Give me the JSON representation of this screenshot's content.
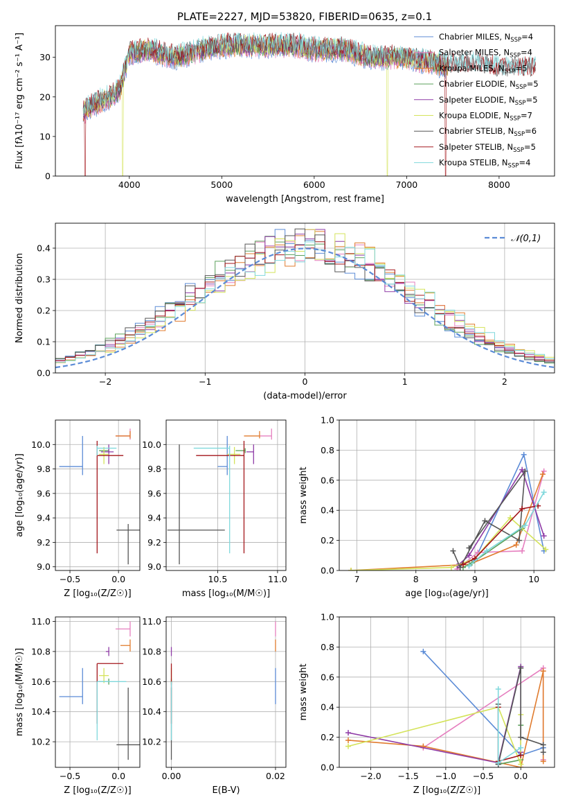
{
  "figure": {
    "title": "PLATE=2227, MJD=53820, FIBERID=0635, z=0.1"
  },
  "models": [
    {
      "name": "Chabrier MILES",
      "nssp": 4,
      "color": "#5b8bd6"
    },
    {
      "name": "Salpeter MILES",
      "nssp": 4,
      "color": "#e67fbf"
    },
    {
      "name": "Kroupa MILES",
      "nssp": 5,
      "color": "#e07b2e"
    },
    {
      "name": "Chabrier ELODIE",
      "nssp": 5,
      "color": "#5aa05a"
    },
    {
      "name": "Salpeter ELODIE",
      "nssp": 5,
      "color": "#8e3aa6"
    },
    {
      "name": "Kroupa ELODIE",
      "nssp": 7,
      "color": "#d4e35a"
    },
    {
      "name": "Chabrier STELIB",
      "nssp": 6,
      "color": "#555555"
    },
    {
      "name": "Salpeter STELIB",
      "nssp": 5,
      "color": "#a3151a"
    },
    {
      "name": "Kroupa STELIB",
      "nssp": 4,
      "color": "#7fd8dc"
    }
  ],
  "chart_data": [
    {
      "id": "spectrum",
      "type": "line",
      "title": "PLATE=2227, MJD=53820, FIBERID=0635, z=0.1",
      "xlabel": "wavelength [Angstrom, rest frame]",
      "ylabel": "Flux [fλ10⁻¹⁷ erg cm⁻² s⁻¹ A⁻¹]",
      "xlim": [
        3200,
        8600
      ],
      "ylim": [
        0,
        38
      ],
      "xticks": [
        4000,
        5000,
        6000,
        7000,
        8000
      ],
      "yticks": [
        0,
        10,
        20,
        30
      ],
      "grid": false,
      "legend": "top-right",
      "continuum": {
        "x": [
          3500,
          3600,
          3700,
          3800,
          3900,
          4000,
          4200,
          4500,
          4800,
          5000,
          5200,
          5500,
          5800,
          6000,
          6300,
          6600,
          6800,
          7000,
          7200,
          7400,
          7600,
          7800,
          8000,
          8200,
          8400
        ],
        "y": [
          16,
          18,
          19,
          20,
          22,
          31,
          32,
          30,
          32,
          33,
          33,
          33,
          33,
          32,
          32,
          30,
          30,
          30,
          29,
          28,
          28,
          28,
          27,
          27,
          27
        ]
      },
      "dips": [
        {
          "x": 3520,
          "y": 0,
          "series": "Salpeter STELIB"
        },
        {
          "x": 3930,
          "y": 0,
          "series": "Kroupa ELODIE"
        },
        {
          "x": 6790,
          "y": 0,
          "series": "Kroupa ELODIE"
        },
        {
          "x": 7420,
          "y": 0,
          "series": "Salpeter STELIB"
        }
      ]
    },
    {
      "id": "residuals",
      "type": "histogram",
      "xlabel": "(data-model)/error",
      "ylabel": "Normed distribution",
      "xlim": [
        -2.5,
        2.5
      ],
      "ylim": [
        0,
        0.48
      ],
      "xticks": [
        -2,
        -1,
        0,
        1,
        2
      ],
      "yticks": [
        0.0,
        0.1,
        0.2,
        0.3,
        0.4
      ],
      "grid": true,
      "legend": "top-right",
      "reference": {
        "label": "𝒩(0,1)",
        "mean": 0,
        "sigma": 1,
        "style": "dashed"
      },
      "bin_width": 0.1,
      "peaks": [
        0.46,
        0.42,
        0.44,
        0.41,
        0.46,
        0.43,
        0.44,
        0.41,
        0.42
      ]
    },
    {
      "id": "age_vs_Z",
      "type": "errorbar",
      "xlabel": "Z [log₁₀(Z/Z☉)]",
      "ylabel": "age  [log₁₀(age/yr)]",
      "xlim": [
        -0.65,
        0.22
      ],
      "ylim": [
        8.97,
        10.2
      ],
      "xticks": [
        -0.5,
        0.0
      ],
      "yticks": [
        9.0,
        9.2,
        9.4,
        9.6,
        9.8,
        10.0
      ],
      "grid": true,
      "points": [
        {
          "series": "Chabrier MILES",
          "x": -0.37,
          "xerr": [
            0.24,
            0.0
          ],
          "y": 9.82,
          "yerr": [
            0.07,
            0.25
          ]
        },
        {
          "series": "Salpeter MILES",
          "x": 0.12,
          "xerr": [
            0.15,
            0.0
          ],
          "y": 10.07,
          "yerr": [
            0.03,
            0.06
          ]
        },
        {
          "series": "Kroupa MILES",
          "x": 0.12,
          "xerr": [
            0.15,
            0.0
          ],
          "y": 10.07,
          "yerr": [
            0.02,
            0.04
          ]
        },
        {
          "series": "Chabrier ELODIE",
          "x": -0.1,
          "xerr": [
            0.1,
            0.0
          ],
          "y": 9.95,
          "yerr": [
            0.02,
            0.02
          ]
        },
        {
          "series": "Salpeter ELODIE",
          "x": -0.1,
          "xerr": [
            0.08,
            0.05
          ],
          "y": 9.94,
          "yerr": [
            0.1,
            0.06
          ]
        },
        {
          "series": "Kroupa ELODIE",
          "x": -0.15,
          "xerr": [
            0.05,
            0.05
          ],
          "y": 9.92,
          "yerr": [
            0.08,
            0.06
          ]
        },
        {
          "series": "Chabrier STELIB",
          "x": 0.1,
          "xerr": [
            0.12,
            0.15
          ],
          "y": 9.3,
          "yerr": [
            0.28,
            0.05
          ]
        },
        {
          "series": "Salpeter STELIB",
          "x": -0.22,
          "xerr": [
            0.0,
            0.27
          ],
          "y": 9.91,
          "yerr": [
            0.8,
            0.12
          ]
        },
        {
          "series": "Kroupa STELIB",
          "x": -0.22,
          "xerr": [
            0.0,
            0.2
          ],
          "y": 9.97,
          "yerr": [
            0.06,
            0.02
          ]
        }
      ]
    },
    {
      "id": "age_vs_mass",
      "type": "errorbar",
      "xlabel": "mass [log₁₀(M/M☉)]",
      "ylabel": "",
      "xlim": [
        10.07,
        11.07
      ],
      "ylim": [
        8.97,
        10.2
      ],
      "xticks": [
        10.5,
        11.0
      ],
      "yticks": [
        9.0,
        9.2,
        9.4,
        9.6,
        9.8,
        10.0
      ],
      "grid": true,
      "points": [
        {
          "series": "Chabrier MILES",
          "x": 10.58,
          "xerr": [
            0.08,
            0.0
          ],
          "y": 9.82,
          "yerr": [
            0.07,
            0.25
          ]
        },
        {
          "series": "Salpeter MILES",
          "x": 10.95,
          "xerr": [
            0.1,
            0.0
          ],
          "y": 10.07,
          "yerr": [
            0.03,
            0.06
          ]
        },
        {
          "series": "Kroupa MILES",
          "x": 10.85,
          "xerr": [
            0.13,
            0.0
          ],
          "y": 10.07,
          "yerr": [
            0.02,
            0.04
          ]
        },
        {
          "series": "Chabrier ELODIE",
          "x": 10.73,
          "xerr": [
            0.08,
            0.0
          ],
          "y": 9.95,
          "yerr": [
            0.02,
            0.02
          ]
        },
        {
          "series": "Salpeter ELODIE",
          "x": 10.8,
          "xerr": [
            0.06,
            0.0
          ],
          "y": 9.94,
          "yerr": [
            0.1,
            0.06
          ]
        },
        {
          "series": "Kroupa ELODIE",
          "x": 10.64,
          "xerr": [
            0.06,
            0.05
          ],
          "y": 9.92,
          "yerr": [
            0.08,
            0.06
          ]
        },
        {
          "series": "Chabrier STELIB",
          "x": 10.18,
          "xerr": [
            0.1,
            0.38
          ],
          "y": 9.3,
          "yerr": [
            0.28,
            0.7
          ]
        },
        {
          "series": "Salpeter STELIB",
          "x": 10.72,
          "xerr": [
            0.4,
            0.0
          ],
          "y": 9.91,
          "yerr": [
            0.8,
            0.12
          ]
        },
        {
          "series": "Kroupa STELIB",
          "x": 10.6,
          "xerr": [
            0.3,
            0.0
          ],
          "y": 9.97,
          "yerr": [
            0.86,
            0.02
          ]
        }
      ]
    },
    {
      "id": "weight_vs_age",
      "type": "line",
      "xlabel": "age  [log₁₀(age/yr)]",
      "ylabel": "mass weight",
      "xlim": [
        6.7,
        10.35
      ],
      "ylim": [
        0,
        1
      ],
      "xticks": [
        7,
        8,
        9,
        10
      ],
      "yticks": [
        0.0,
        0.2,
        0.4,
        0.6,
        0.8,
        1.0
      ],
      "grid": true,
      "series": [
        {
          "name": "Chabrier MILES",
          "x": [
            8.9,
            9.0,
            9.83,
            10.17
          ],
          "y": [
            0.03,
            0.07,
            0.77,
            0.13
          ]
        },
        {
          "name": "Salpeter MILES",
          "x": [
            8.7,
            9.05,
            9.8,
            10.17
          ],
          "y": [
            0.01,
            0.12,
            0.13,
            0.66
          ]
        },
        {
          "name": "Kroupa MILES",
          "x": [
            6.9,
            8.9,
            9.7,
            10.15
          ],
          "y": [
            0.0,
            0.04,
            0.17,
            0.64
          ]
        },
        {
          "name": "Chabrier ELODIE",
          "x": [
            8.8,
            8.95,
            9.8
          ],
          "y": [
            0.02,
            0.05,
            0.28
          ]
        },
        {
          "name": "Salpeter ELODIE",
          "x": [
            8.7,
            8.9,
            9.8,
            10.17
          ],
          "y": [
            0.03,
            0.1,
            0.67,
            0.23
          ]
        },
        {
          "name": "Kroupa ELODIE",
          "x": [
            6.9,
            8.6,
            9.0,
            9.6,
            10.2
          ],
          "y": [
            0.0,
            0.02,
            0.08,
            0.35,
            0.14
          ]
        },
        {
          "name": "Chabrier STELIB",
          "x": [
            8.63,
            8.75,
            9.17,
            9.75,
            9.85,
            8.9
          ],
          "y": [
            0.13,
            0.02,
            0.33,
            0.2,
            0.66,
            0.15
          ]
        },
        {
          "name": "Salpeter STELIB",
          "x": [
            8.8,
            9.0,
            9.8,
            10.07
          ],
          "y": [
            0.04,
            0.08,
            0.41,
            0.43
          ]
        },
        {
          "name": "Kroupa STELIB",
          "x": [
            8.9,
            9.2,
            9.85,
            10.17
          ],
          "y": [
            0.03,
            0.13,
            0.3,
            0.52
          ]
        }
      ]
    },
    {
      "id": "mass_vs_Z",
      "type": "errorbar",
      "xlabel": "Z [log₁₀(Z/Z☉)]",
      "ylabel": "mass [log₁₀(M/M☉)]",
      "xlim": [
        -0.65,
        0.22
      ],
      "ylim": [
        10.03,
        11.03
      ],
      "xticks": [
        -0.5,
        0.0
      ],
      "yticks": [
        10.2,
        10.4,
        10.6,
        10.8,
        11.0
      ],
      "grid": true,
      "points": [
        {
          "series": "Chabrier MILES",
          "x": -0.37,
          "xerr": [
            0.24,
            0.0
          ],
          "y": 10.5,
          "yerr": [
            0.05,
            0.19
          ]
        },
        {
          "series": "Salpeter MILES",
          "x": 0.12,
          "xerr": [
            0.15,
            0.0
          ],
          "y": 10.95,
          "yerr": [
            0.05,
            0.05
          ]
        },
        {
          "series": "Kroupa MILES",
          "x": 0.12,
          "xerr": [
            0.1,
            0.0
          ],
          "y": 10.84,
          "yerr": [
            0.04,
            0.04
          ]
        },
        {
          "series": "Chabrier ELODIE",
          "x": -0.1,
          "xerr": [
            0.1,
            0.0
          ],
          "y": 10.6,
          "yerr": [
            0.02,
            0.02
          ]
        },
        {
          "series": "Salpeter ELODIE",
          "x": -0.1,
          "xerr": [
            0.03,
            0.0
          ],
          "y": 10.8,
          "yerr": [
            0.03,
            0.03
          ]
        },
        {
          "series": "Kroupa ELODIE",
          "x": -0.15,
          "xerr": [
            0.05,
            0.05
          ],
          "y": 10.64,
          "yerr": [
            0.05,
            0.05
          ]
        },
        {
          "series": "Chabrier STELIB",
          "x": 0.1,
          "xerr": [
            0.12,
            0.15
          ],
          "y": 10.18,
          "yerr": [
            0.1,
            0.38
          ]
        },
        {
          "series": "Salpeter STELIB",
          "x": -0.22,
          "xerr": [
            0.0,
            0.27
          ],
          "y": 10.72,
          "yerr": [
            0.4,
            0.0
          ]
        },
        {
          "series": "Kroupa STELIB",
          "x": -0.22,
          "xerr": [
            0.0,
            0.3
          ],
          "y": 10.6,
          "yerr": [
            0.39,
            0.0
          ]
        }
      ]
    },
    {
      "id": "mass_vs_ebv",
      "type": "errorbar",
      "xlabel": "E(B-V)",
      "ylabel": "",
      "xlim": [
        -0.001,
        0.022
      ],
      "ylim": [
        10.03,
        11.03
      ],
      "xticks": [
        0.0,
        0.02
      ],
      "yticks": [
        10.2,
        10.4,
        10.6,
        10.8,
        11.0
      ],
      "grid": true,
      "points": [
        {
          "series": "Chabrier MILES",
          "x": 0.02,
          "xerr": [
            0,
            0
          ],
          "y": 10.5,
          "yerr": [
            0.05,
            0.19
          ]
        },
        {
          "series": "Salpeter MILES",
          "x": 0.02,
          "xerr": [
            0,
            0
          ],
          "y": 10.95,
          "yerr": [
            0.05,
            0.05
          ]
        },
        {
          "series": "Kroupa MILES",
          "x": 0.02,
          "xerr": [
            0,
            0
          ],
          "y": 10.84,
          "yerr": [
            0.04,
            0.04
          ]
        },
        {
          "series": "Chabrier ELODIE",
          "x": 0.0,
          "xerr": [
            0,
            0
          ],
          "y": 10.6,
          "yerr": [
            0.02,
            0.02
          ]
        },
        {
          "series": "Salpeter ELODIE",
          "x": 0.0,
          "xerr": [
            0,
            0
          ],
          "y": 10.8,
          "yerr": [
            0.03,
            0.03
          ]
        },
        {
          "series": "Kroupa ELODIE",
          "x": 0.0,
          "xerr": [
            0,
            0
          ],
          "y": 10.64,
          "yerr": [
            0.05,
            0.05
          ]
        },
        {
          "series": "Chabrier STELIB",
          "x": 0.0,
          "xerr": [
            0,
            0
          ],
          "y": 10.18,
          "yerr": [
            0.1,
            0.38
          ]
        },
        {
          "series": "Salpeter STELIB",
          "x": 0.0,
          "xerr": [
            0,
            0
          ],
          "y": 10.72,
          "yerr": [
            0.4,
            0.0
          ]
        },
        {
          "series": "Kroupa STELIB",
          "x": 0.0,
          "xerr": [
            0,
            0
          ],
          "y": 10.6,
          "yerr": [
            0.39,
            0.0
          ]
        }
      ]
    },
    {
      "id": "weight_vs_Z",
      "type": "line",
      "xlabel": "Z [log₁₀(Z/Z☉)]",
      "ylabel": "mass weight",
      "xlim": [
        -2.42,
        0.45
      ],
      "ylim": [
        0,
        1
      ],
      "xticks": [
        -2.0,
        -1.5,
        -1.0,
        -0.5,
        0.0
      ],
      "yticks": [
        0.0,
        0.2,
        0.4,
        0.6,
        0.8,
        1.0
      ],
      "grid": true,
      "series": [
        {
          "name": "Chabrier MILES",
          "x": [
            -1.3,
            0.0,
            0.3
          ],
          "y": [
            0.77,
            0.08,
            0.13
          ]
        },
        {
          "name": "Salpeter MILES",
          "x": [
            -1.3,
            0.3,
            0.3
          ],
          "y": [
            0.13,
            0.66,
            0.05
          ]
        },
        {
          "name": "Kroupa MILES",
          "x": [
            -2.3,
            -1.3,
            0.0,
            0.3,
            0.3
          ],
          "y": [
            0.18,
            0.14,
            0.0,
            0.64,
            0.04
          ]
        },
        {
          "name": "Chabrier ELODIE",
          "x": [
            -0.3,
            0.0,
            0.0
          ],
          "y": [
            0.02,
            0.05,
            0.28
          ]
        },
        {
          "name": "Salpeter ELODIE",
          "x": [
            -2.3,
            -0.3,
            0.0,
            0.0
          ],
          "y": [
            0.23,
            0.03,
            0.67,
            0.1
          ]
        },
        {
          "name": "Kroupa ELODIE",
          "x": [
            -2.3,
            -0.3,
            0.0,
            0.0
          ],
          "y": [
            0.14,
            0.4,
            0.02,
            0.35
          ]
        },
        {
          "name": "Chabrier STELIB",
          "x": [
            -0.3,
            -0.3,
            0.0,
            0.0,
            0.3,
            0.3
          ],
          "y": [
            0.42,
            0.02,
            0.66,
            0.2,
            0.15,
            0.1
          ]
        },
        {
          "name": "Salpeter STELIB",
          "x": [
            -0.3,
            -0.3,
            0.0
          ],
          "y": [
            0.4,
            0.04,
            0.08
          ]
        },
        {
          "name": "Kroupa STELIB",
          "x": [
            -0.3,
            -0.3,
            0.0
          ],
          "y": [
            0.52,
            0.03,
            0.13
          ]
        }
      ]
    }
  ]
}
